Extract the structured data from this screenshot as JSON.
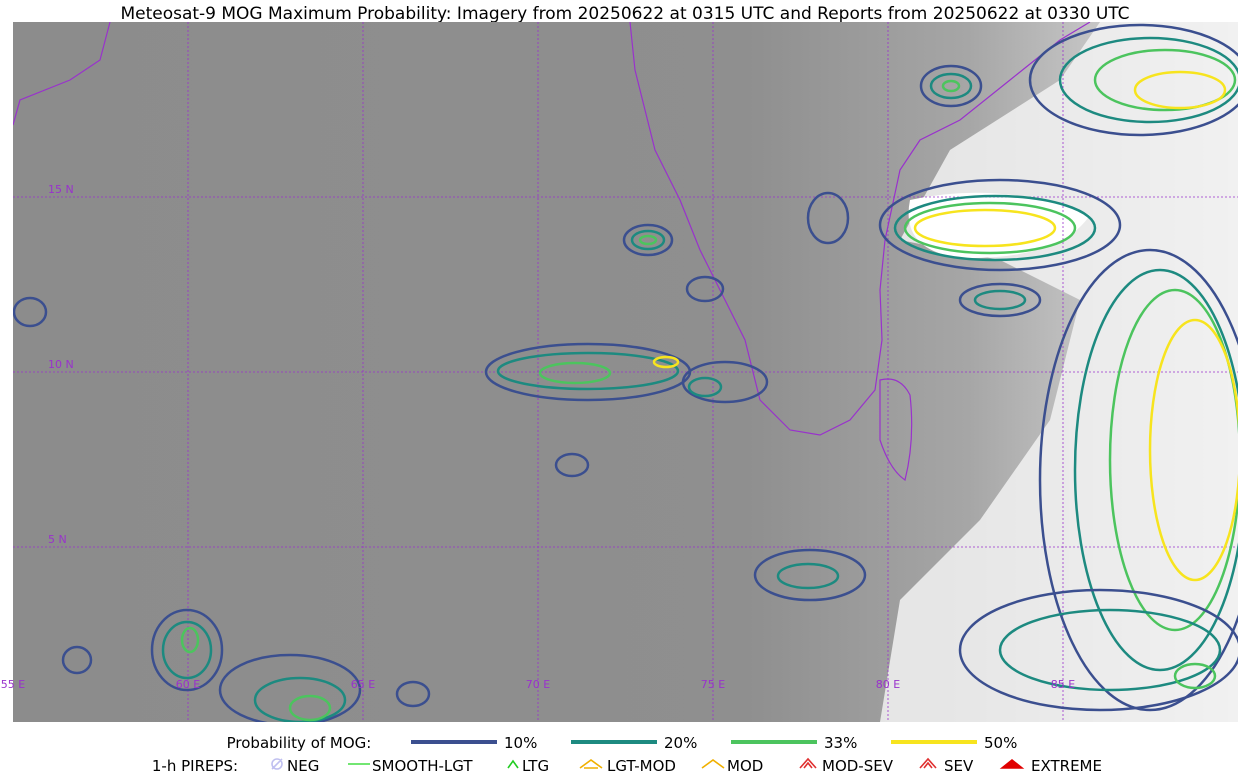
{
  "header": {
    "title": "Meteosat-9 MOG Maximum Probability: Imagery from 20250622 at 0315 UTC and Reports from 20250622 at 0330 UTC"
  },
  "map": {
    "lon_labels": [
      "55 E",
      "60 E",
      "65 E",
      "70 E",
      "75 E",
      "80 E",
      "85 E"
    ],
    "lat_labels": [
      "15 N",
      "10 N",
      "5 N"
    ]
  },
  "legend": {
    "probability": {
      "title": "Probability of MOG:",
      "items": [
        {
          "label": "10%",
          "color": "#3b4f8f"
        },
        {
          "label": "20%",
          "color": "#1d8a80"
        },
        {
          "label": "33%",
          "color": "#4cc45e"
        },
        {
          "label": "50%",
          "color": "#f7e41e"
        }
      ]
    },
    "pireps": {
      "title": "1-h PIREPS:",
      "items": [
        {
          "label": "NEG",
          "color": "#c0c0f0"
        },
        {
          "label": "SMOOTH-LGT",
          "color": "#44dd44"
        },
        {
          "label": "LTG",
          "color": "#22cc22"
        },
        {
          "label": "LGT-MOD",
          "color": "#f0b000"
        },
        {
          "label": "MOD",
          "color": "#f0b000"
        },
        {
          "label": "MOD-SEV",
          "color": "#e03030"
        },
        {
          "label": "SEV",
          "color": "#e03030"
        },
        {
          "label": "EXTREME",
          "color": "#e00000"
        }
      ]
    }
  }
}
